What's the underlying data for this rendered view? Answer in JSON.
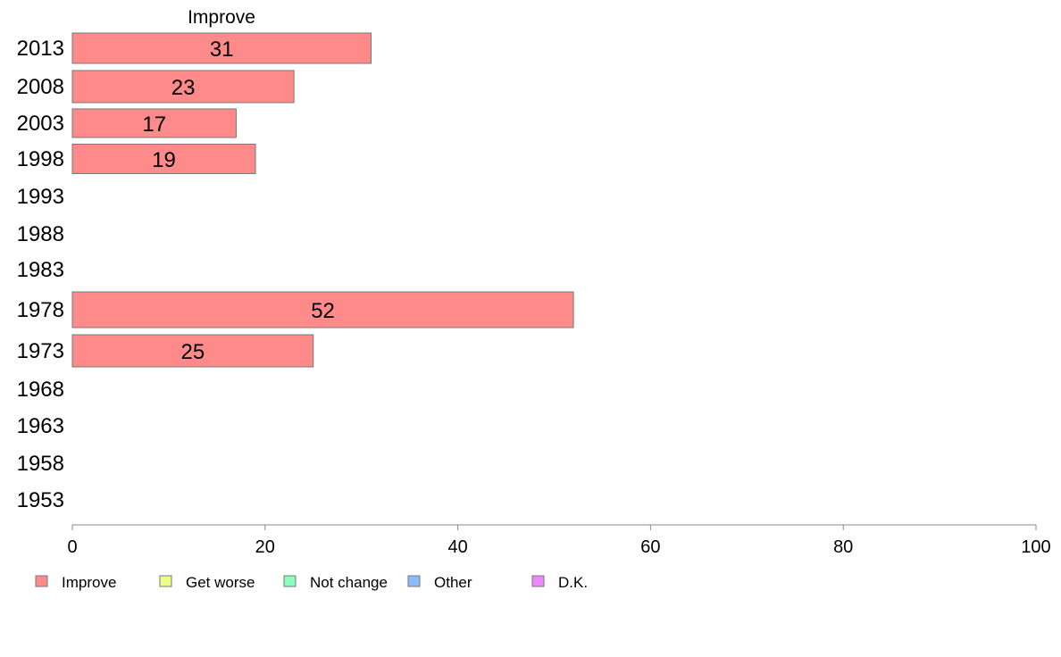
{
  "chart_data": {
    "type": "bar",
    "orientation": "horizontal",
    "title": "Improve",
    "categories": [
      "2013",
      "2008",
      "2003",
      "1998",
      "1993",
      "1988",
      "1983",
      "1978",
      "1973",
      "1968",
      "1963",
      "1958",
      "1953"
    ],
    "series": [
      {
        "name": "Improve",
        "color": "#ff8a8a",
        "values": [
          31,
          23,
          17,
          19,
          null,
          null,
          null,
          52,
          25,
          null,
          null,
          null,
          null
        ]
      }
    ],
    "xlim": [
      0,
      100
    ],
    "xticks": [
      0,
      20,
      40,
      60,
      80,
      100
    ],
    "grid": false,
    "legend": {
      "placement": "bottom",
      "entries": [
        {
          "label": "Improve",
          "color": "#ff8a8a"
        },
        {
          "label": "Get worse",
          "color": "#eeff88"
        },
        {
          "label": "Not change",
          "color": "#88ffbb"
        },
        {
          "label": "Other",
          "color": "#88bbff"
        },
        {
          "label": "D.K.",
          "color": "#ee88ff"
        }
      ]
    }
  }
}
